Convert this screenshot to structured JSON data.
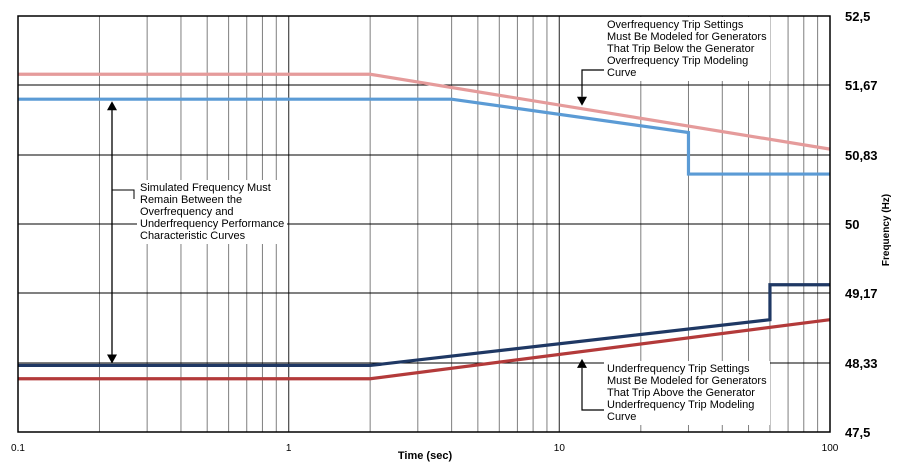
{
  "chart_data": {
    "type": "line",
    "xlabel": "Time (sec)",
    "ylabel": "Frequency (Hz)",
    "xscale": "log",
    "xlim": [
      0.1,
      100
    ],
    "ylim": [
      47.5,
      52.5
    ],
    "x_ticks": [
      {
        "v": 0.1,
        "label": "0.1"
      },
      {
        "v": 1,
        "label": "1"
      },
      {
        "v": 10,
        "label": "10"
      },
      {
        "v": 100,
        "label": "100"
      }
    ],
    "y_ticks": [
      {
        "v": 47.5,
        "label": "47,5"
      },
      {
        "v": 48.33,
        "label": "48,33"
      },
      {
        "v": 49.17,
        "label": "49,17"
      },
      {
        "v": 50,
        "label": "50"
      },
      {
        "v": 50.83,
        "label": "50,83"
      },
      {
        "v": 51.67,
        "label": "51,67"
      },
      {
        "v": 52.5,
        "label": "52,5"
      }
    ],
    "grid": true,
    "legend": "none",
    "series": [
      {
        "color": "#e59b9b",
        "points": [
          [
            0.1,
            51.8
          ],
          [
            2,
            51.8
          ],
          [
            100,
            50.9
          ]
        ]
      },
      {
        "color": "#5b9bd5",
        "points": [
          [
            0.1,
            51.5
          ],
          [
            4,
            51.5
          ],
          [
            30,
            51.1
          ],
          [
            30,
            50.6
          ],
          [
            100,
            50.6
          ]
        ]
      },
      {
        "color": "#1f3864",
        "points": [
          [
            0.1,
            48.3
          ],
          [
            2,
            48.3
          ],
          [
            60,
            48.85
          ],
          [
            60,
            49.27
          ],
          [
            100,
            49.27
          ]
        ]
      },
      {
        "color": "#b33a3a",
        "points": [
          [
            0.1,
            48.14
          ],
          [
            2,
            48.14
          ],
          [
            100,
            48.85
          ]
        ]
      }
    ],
    "annotations": {
      "overfrequency": {
        "lines": [
          "Overfrequency Trip Settings",
          "Must Be Modeled for Generators",
          "That Trip Below the Generator",
          "Overfrequency Trip Modeling",
          "Curve"
        ]
      },
      "simulated": {
        "lines": [
          "Simulated Frequency Must",
          "Remain Between the",
          "Overfrequency and",
          "Underfrequency Performance",
          "Characteristic Curves"
        ]
      },
      "underfrequency": {
        "lines": [
          "Underfrequency Trip Settings",
          "Must Be Modeled for Generators",
          "That Trip Above the Generator",
          "Underfrequency Trip Modeling",
          "Curve"
        ]
      }
    }
  }
}
